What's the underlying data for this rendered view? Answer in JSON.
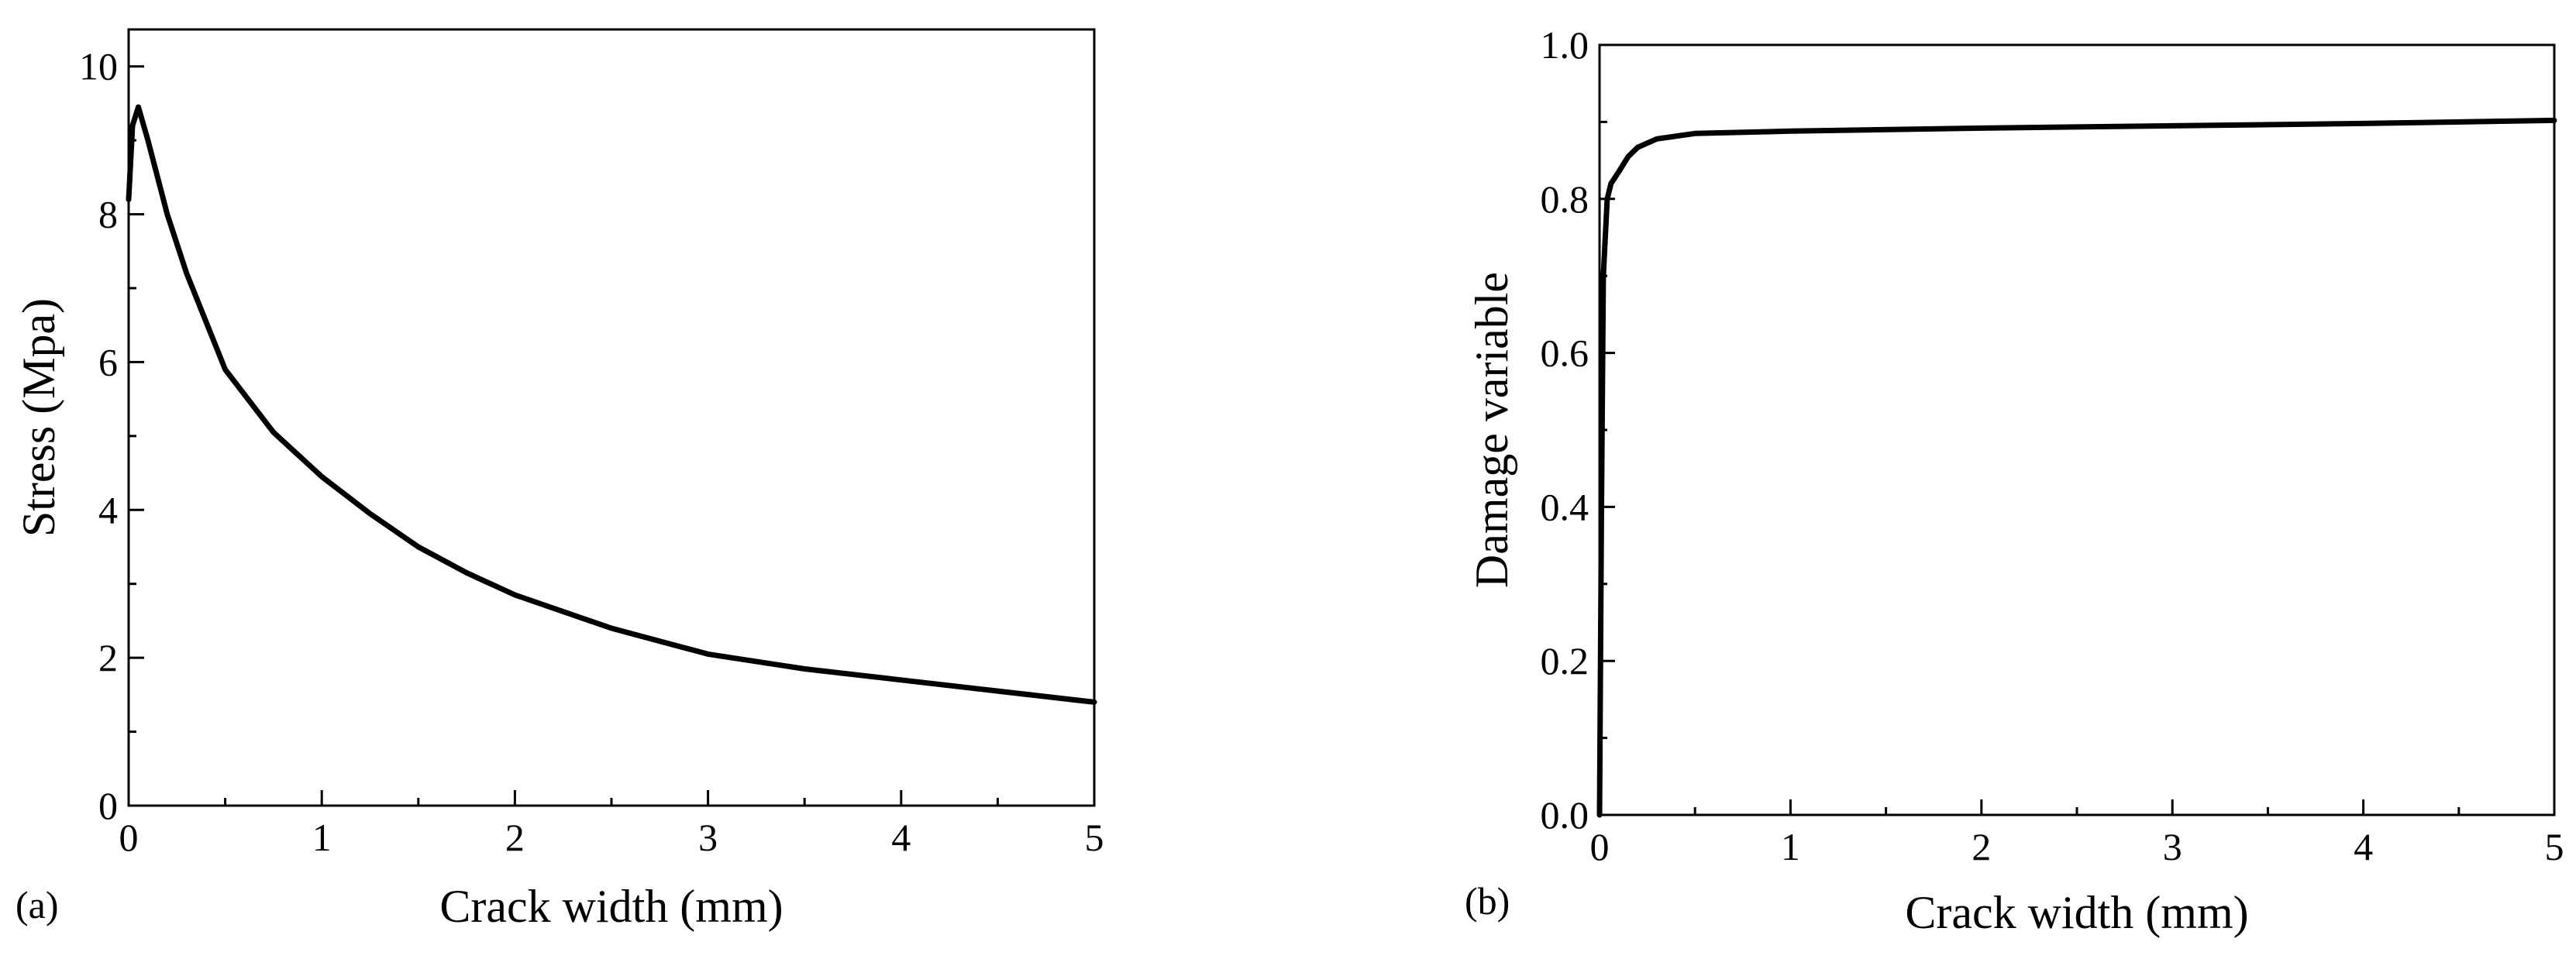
{
  "chart_data": [
    {
      "type": "line",
      "panel_label": "(a)",
      "xlabel": "Crack width (mm)",
      "ylabel": "Stress (Mpa)",
      "xlim": [
        0,
        5
      ],
      "ylim": [
        0,
        10.5
      ],
      "xticks": [
        0,
        1,
        2,
        3,
        4,
        5
      ],
      "yticks": [
        0,
        2,
        4,
        6,
        8,
        10
      ],
      "xtick_labels": [
        "0",
        "1",
        "2",
        "3",
        "4",
        "5"
      ],
      "ytick_labels": [
        "0",
        "2",
        "4",
        "6",
        "8",
        "10"
      ],
      "grid": false,
      "line_color": "#000000",
      "series": [
        {
          "x": [
            0,
            0.02,
            0.05,
            0.1,
            0.2,
            0.3,
            0.5,
            0.75,
            1.0,
            1.25,
            1.5,
            1.75,
            2.0,
            2.5,
            3.0,
            3.5,
            4.0,
            4.5,
            5.0
          ],
          "y": [
            8.2,
            9.2,
            9.45,
            9.0,
            8.0,
            7.2,
            5.9,
            5.05,
            4.45,
            3.95,
            3.5,
            3.15,
            2.85,
            2.4,
            2.05,
            1.85,
            1.7,
            1.55,
            1.4
          ]
        }
      ]
    },
    {
      "type": "line",
      "panel_label": "(b)",
      "xlabel": "Crack width (mm)",
      "ylabel": "Damage variable",
      "xlim": [
        0,
        5
      ],
      "ylim": [
        0,
        1.0
      ],
      "xticks": [
        0,
        1,
        2,
        3,
        4,
        5
      ],
      "yticks": [
        0.0,
        0.2,
        0.4,
        0.6,
        0.8,
        1.0
      ],
      "xtick_labels": [
        "0",
        "1",
        "2",
        "3",
        "4",
        "5"
      ],
      "ytick_labels": [
        "0.0",
        "0.2",
        "0.4",
        "0.6",
        "0.8",
        "1.0"
      ],
      "grid": false,
      "line_color": "#000000",
      "series": [
        {
          "x": [
            0,
            0.01,
            0.02,
            0.04,
            0.06,
            0.1,
            0.15,
            0.2,
            0.3,
            0.5,
            1.0,
            2.0,
            3.0,
            4.0,
            5.0
          ],
          "y": [
            0,
            0.4,
            0.7,
            0.8,
            0.82,
            0.835,
            0.855,
            0.867,
            0.878,
            0.885,
            0.888,
            0.892,
            0.895,
            0.898,
            0.902
          ]
        }
      ]
    }
  ]
}
